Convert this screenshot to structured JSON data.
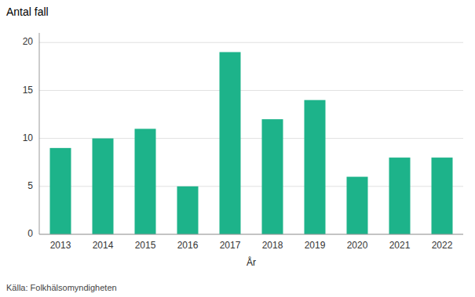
{
  "chart_data": {
    "type": "bar",
    "ylabel": "Antal fall",
    "xlabel": "År",
    "annotations": [
      "Källa: Folkhälsomyndigheten"
    ],
    "categories": [
      "2013",
      "2014",
      "2015",
      "2016",
      "2017",
      "2018",
      "2019",
      "2020",
      "2021",
      "2022"
    ],
    "values": [
      9,
      10,
      11,
      5,
      19,
      12,
      14,
      6,
      8,
      8
    ],
    "color": "#1db38a",
    "ylim": [
      0,
      21
    ],
    "yticks": [
      0,
      5,
      10,
      15,
      20
    ],
    "grid": true
  }
}
